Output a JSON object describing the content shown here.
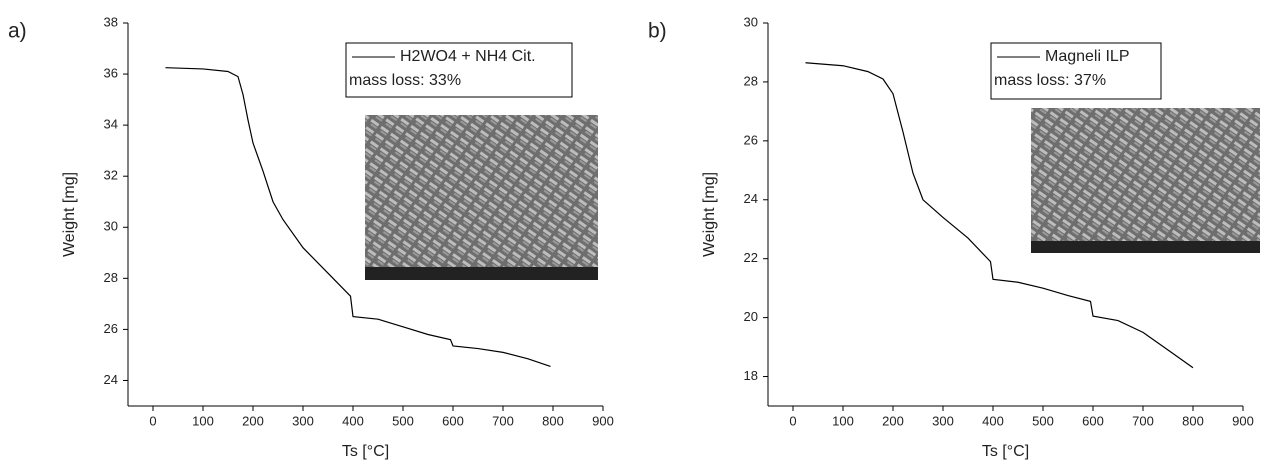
{
  "chart_data": [
    {
      "type": "line",
      "panel_label": "a)",
      "xlabel": "Ts [°C]",
      "ylabel": "Weight [mg]",
      "annotation": "mass loss: 33%",
      "xlim": [
        -50,
        900
      ],
      "xticks": [
        0,
        100,
        200,
        300,
        400,
        500,
        600,
        700,
        800,
        900
      ],
      "ylim": [
        23,
        38
      ],
      "yticks": [
        24,
        26,
        28,
        30,
        32,
        34,
        36,
        38
      ],
      "x": [
        25,
        100,
        150,
        170,
        180,
        190,
        200,
        220,
        240,
        260,
        300,
        350,
        395,
        400,
        450,
        500,
        550,
        595,
        600,
        650,
        700,
        750,
        795
      ],
      "series": [
        {
          "name": "H2WO4 + NH4 Cit.",
          "color": "#000000",
          "values": [
            36.25,
            36.2,
            36.1,
            35.9,
            35.2,
            34.2,
            33.3,
            32.2,
            31.0,
            30.3,
            29.2,
            28.2,
            27.3,
            26.5,
            26.4,
            26.1,
            25.8,
            25.6,
            25.35,
            25.25,
            25.1,
            24.85,
            24.55
          ]
        }
      ]
    },
    {
      "type": "line",
      "panel_label": "b)",
      "xlabel": "Ts [°C]",
      "ylabel": "Weight [mg]",
      "annotation": "mass loss: 37%",
      "xlim": [
        -50,
        900
      ],
      "xticks": [
        0,
        100,
        200,
        300,
        400,
        500,
        600,
        700,
        800,
        900
      ],
      "ylim": [
        17,
        30
      ],
      "yticks": [
        18,
        20,
        22,
        24,
        26,
        28,
        30
      ],
      "x": [
        25,
        100,
        150,
        180,
        200,
        220,
        240,
        260,
        300,
        350,
        395,
        400,
        450,
        500,
        550,
        595,
        600,
        650,
        700,
        750,
        800
      ],
      "series": [
        {
          "name": "Magneli ILP",
          "color": "#000000",
          "values": [
            28.65,
            28.55,
            28.35,
            28.1,
            27.6,
            26.3,
            24.9,
            24.0,
            23.4,
            22.7,
            21.9,
            21.3,
            21.2,
            21.0,
            20.75,
            20.55,
            20.05,
            19.9,
            19.5,
            18.9,
            18.3
          ]
        }
      ]
    }
  ]
}
